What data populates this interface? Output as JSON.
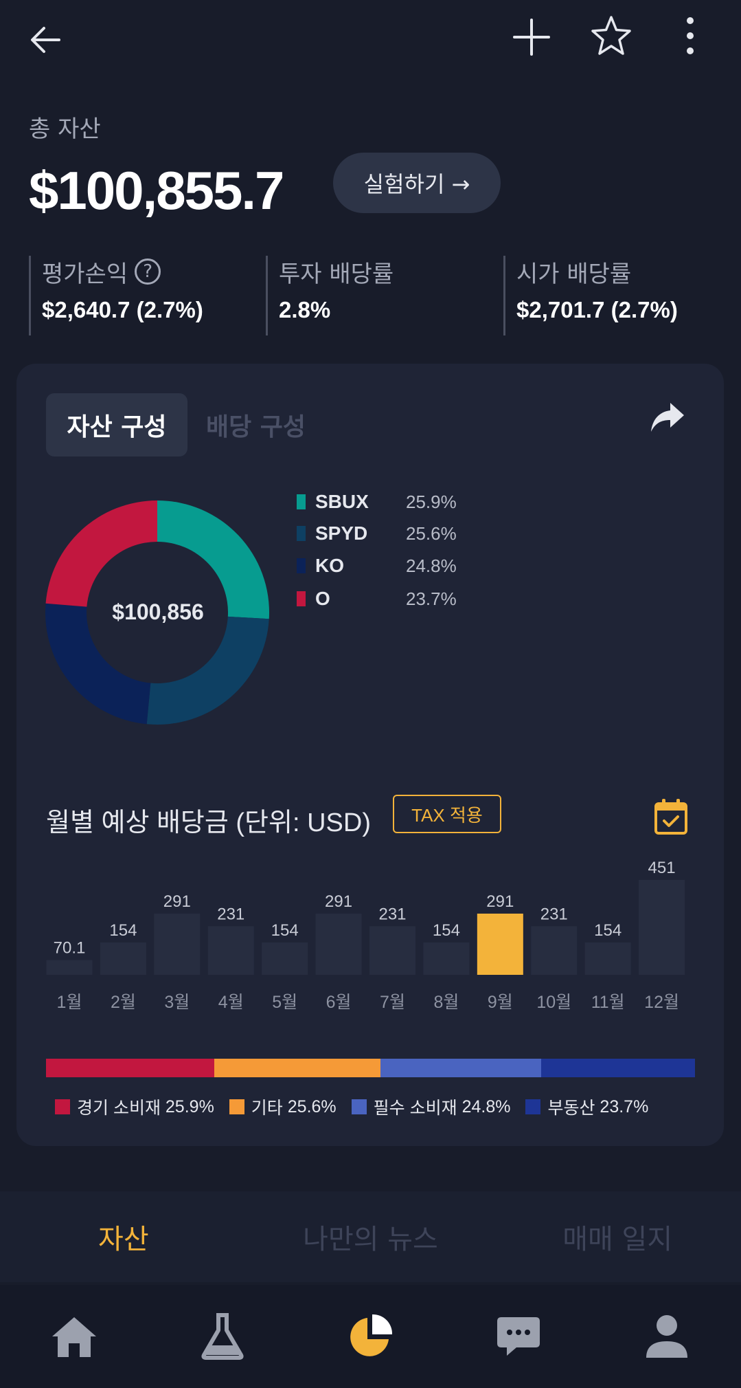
{
  "header": {
    "back_icon": "arrow-left-icon",
    "add_icon": "plus-icon",
    "favorite_icon": "star-outline-icon",
    "more_icon": "vertical-dots-icon"
  },
  "summary": {
    "total_label": "총 자산",
    "total_value": "$100,855.7",
    "experiment_button": "실험하기 →",
    "stats": [
      {
        "label": "평가손익",
        "value": "$2,640.7 (2.7%)",
        "help": "?"
      },
      {
        "label": "투자 배당률",
        "value": "2.8%"
      },
      {
        "label": "시가 배당률",
        "value": "$2,701.7 (2.7%)"
      }
    ]
  },
  "composition": {
    "tabs": [
      "자산 구성",
      "배당 구성"
    ],
    "share_icon": "share-arrow-icon",
    "center_label": "$100,856",
    "holdings": [
      {
        "ticker": "SBUX",
        "percent": "25.9%",
        "value": 25.9,
        "color": "#079c90"
      },
      {
        "ticker": "SPYD",
        "percent": "25.6%",
        "value": 25.6,
        "color": "#0e4063"
      },
      {
        "ticker": "KO",
        "percent": "24.8%",
        "value": 24.8,
        "color": "#0b2258"
      },
      {
        "ticker": "O",
        "percent": "23.7%",
        "value": 23.7,
        "color": "#c2173f"
      }
    ]
  },
  "dividends": {
    "title": "월별 예상 배당금 (단위: USD)",
    "tax_label": "TAX 적용",
    "calendar_icon": "calendar-check-icon"
  },
  "chart_data": {
    "type": "bar",
    "title": "월별 예상 배당금 (단위: USD)",
    "categories": [
      "1월",
      "2월",
      "3월",
      "4월",
      "5월",
      "6월",
      "7월",
      "8월",
      "9월",
      "10월",
      "11월",
      "12월"
    ],
    "values": [
      70.1,
      154,
      291,
      231,
      154,
      291,
      231,
      154,
      291,
      231,
      154,
      451
    ],
    "value_labels": [
      "70.1",
      "154",
      "291",
      "231",
      "154",
      "291",
      "231",
      "154",
      "291",
      "231",
      "154",
      "451"
    ],
    "highlight_index": 8,
    "bar_color": "#272d40",
    "highlight_color": "#f3b33a",
    "ylim": [
      0,
      451
    ]
  },
  "sectors": [
    {
      "name": "경기 소비재",
      "percent": "25.9%",
      "value": 25.9,
      "color": "#c2173f"
    },
    {
      "name": "기타",
      "percent": "25.6%",
      "value": 25.6,
      "color": "#f59a37"
    },
    {
      "name": "필수 소비재",
      "percent": "24.8%",
      "value": 24.8,
      "color": "#4a64c0"
    },
    {
      "name": "부동산",
      "percent": "23.7%",
      "value": 23.7,
      "color": "#1e3596"
    }
  ],
  "sub_tabs": [
    {
      "label": "자산",
      "active": true
    },
    {
      "label": "나만의 뉴스",
      "active": false
    },
    {
      "label": "매매 일지",
      "active": false
    }
  ],
  "bottom_nav": [
    {
      "icon": "home-icon",
      "active": false
    },
    {
      "icon": "flask-icon",
      "active": false
    },
    {
      "icon": "pie-chart-icon",
      "active": true
    },
    {
      "icon": "chat-bubble-icon",
      "active": false
    },
    {
      "icon": "person-icon",
      "active": false
    }
  ],
  "colors": {
    "accent": "#f3b33a",
    "background": "#181c2a",
    "card": "#1f2436"
  }
}
